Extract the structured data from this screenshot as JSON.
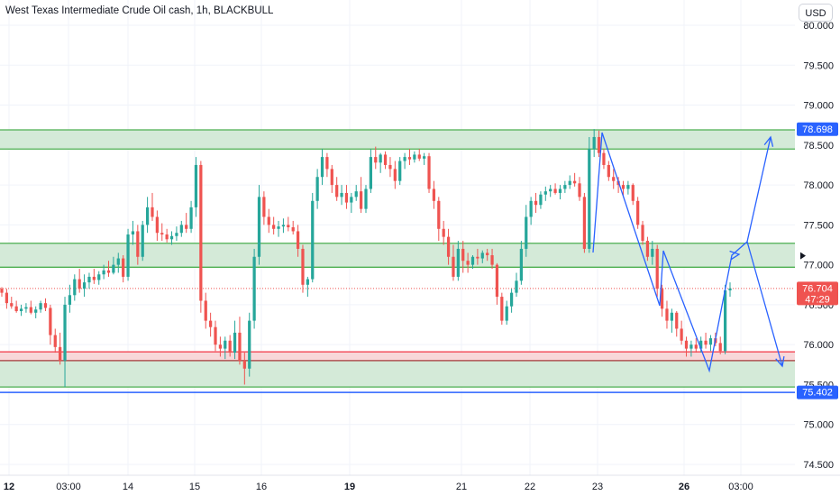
{
  "header": {
    "title": "West Texas Intermediate Crude Oil cash, 1h, BLACKBULL",
    "currency_button": "USD"
  },
  "colors": {
    "up": "#26a69a",
    "down": "#ef5350",
    "zone_fill": "#d4ead8",
    "zone_line": "#4caf50",
    "support_red": "#f23645",
    "support_fill": "#f8d7d9",
    "low_line": "#2962ff",
    "pattern": "#2962ff",
    "grid": "#f0f3fa",
    "axis_text": "#131722"
  },
  "chart_data": {
    "type": "candlestick",
    "title": "West Texas Intermediate Crude Oil cash, 1h, BLACKBULL",
    "ylim": [
      74.4,
      80.05
    ],
    "yticks": [
      "80.000",
      "79.500",
      "79.000",
      "78.500",
      "78.000",
      "77.500",
      "77.000",
      "76.500",
      "76.000",
      "75.500",
      "75.000",
      "74.500"
    ],
    "ytick_values": [
      80.0,
      79.5,
      79.0,
      78.5,
      78.0,
      77.5,
      77.0,
      76.5,
      76.0,
      75.5,
      75.0,
      74.5
    ],
    "xticks": [
      {
        "label": "12",
        "bold": true
      },
      {
        "label": "03:00",
        "bold": false
      },
      {
        "label": "14",
        "bold": false
      },
      {
        "label": "15",
        "bold": false
      },
      {
        "label": "16",
        "bold": false
      },
      {
        "label": "19",
        "bold": true
      },
      {
        "label": "21",
        "bold": false
      },
      {
        "label": "22",
        "bold": false
      },
      {
        "label": "23",
        "bold": false
      },
      {
        "label": "26",
        "bold": true
      },
      {
        "label": "03:00",
        "bold": false
      }
    ],
    "price_tags": [
      {
        "label": "78.698",
        "value": 78.698,
        "color": "#2962ff"
      },
      {
        "label": "76.704",
        "sublabel": "47:29",
        "value": 76.704,
        "color": "#ef5350"
      },
      {
        "label": "75.402",
        "value": 75.402,
        "color": "#2962ff"
      }
    ],
    "last_price": 76.704,
    "countdown": "47:29",
    "zones": [
      {
        "from": 78.45,
        "to": 78.69,
        "kind": "resistance"
      },
      {
        "from": 76.97,
        "to": 77.27,
        "kind": "middle"
      },
      {
        "from": 75.47,
        "to": 75.91,
        "kind": "support"
      }
    ],
    "red_support_band": [
      75.8,
      75.91
    ],
    "low_line": 75.402,
    "candles_ohlc": [
      [
        76.7,
        76.72,
        76.6,
        76.65
      ],
      [
        76.65,
        76.7,
        76.45,
        76.52
      ],
      [
        76.52,
        76.6,
        76.45,
        76.48
      ],
      [
        76.48,
        76.55,
        76.4,
        76.42
      ],
      [
        76.42,
        76.5,
        76.36,
        76.45
      ],
      [
        76.45,
        76.52,
        76.4,
        76.47
      ],
      [
        76.47,
        76.55,
        76.38,
        76.4
      ],
      [
        76.4,
        76.48,
        76.33,
        76.44
      ],
      [
        76.44,
        76.55,
        76.4,
        76.52
      ],
      [
        76.52,
        76.58,
        76.42,
        76.46
      ],
      [
        76.46,
        76.5,
        76.0,
        76.12
      ],
      [
        76.12,
        76.2,
        75.9,
        75.97
      ],
      [
        75.97,
        76.15,
        75.75,
        75.8
      ],
      [
        75.8,
        76.6,
        75.47,
        76.5
      ],
      [
        76.5,
        76.75,
        76.4,
        76.62
      ],
      [
        76.62,
        76.88,
        76.55,
        76.82
      ],
      [
        76.82,
        76.95,
        76.65,
        76.7
      ],
      [
        76.7,
        76.88,
        76.6,
        76.78
      ],
      [
        76.78,
        76.9,
        76.7,
        76.85
      ],
      [
        76.85,
        76.95,
        76.76,
        76.81
      ],
      [
        76.81,
        76.92,
        76.75,
        76.88
      ],
      [
        76.88,
        77.0,
        76.82,
        76.93
      ],
      [
        76.93,
        77.05,
        76.85,
        76.9
      ],
      [
        76.9,
        77.1,
        76.88,
        77.0
      ],
      [
        77.0,
        77.15,
        76.9,
        77.08
      ],
      [
        77.08,
        77.12,
        76.78,
        76.85
      ],
      [
        76.85,
        77.45,
        76.8,
        77.38
      ],
      [
        77.38,
        77.55,
        77.25,
        77.42
      ],
      [
        77.42,
        77.5,
        77.0,
        77.1
      ],
      [
        77.1,
        77.55,
        77.05,
        77.5
      ],
      [
        77.5,
        77.85,
        77.4,
        77.72
      ],
      [
        77.72,
        77.9,
        77.55,
        77.6
      ],
      [
        77.6,
        77.68,
        77.3,
        77.4
      ],
      [
        77.4,
        77.52,
        77.3,
        77.38
      ],
      [
        77.38,
        77.45,
        77.28,
        77.32
      ],
      [
        77.32,
        77.42,
        77.25,
        77.36
      ],
      [
        77.36,
        77.48,
        77.3,
        77.4
      ],
      [
        77.4,
        77.55,
        77.35,
        77.5
      ],
      [
        77.5,
        77.65,
        77.4,
        77.45
      ],
      [
        77.45,
        77.8,
        77.4,
        77.72
      ],
      [
        77.72,
        78.35,
        77.6,
        78.25
      ],
      [
        78.25,
        78.3,
        76.4,
        76.55
      ],
      [
        76.55,
        76.65,
        76.2,
        76.3
      ],
      [
        76.3,
        76.4,
        76.1,
        76.22
      ],
      [
        76.22,
        76.3,
        75.92,
        76.0
      ],
      [
        76.0,
        76.1,
        75.85,
        75.95
      ],
      [
        75.95,
        76.1,
        75.82,
        76.05
      ],
      [
        76.05,
        76.12,
        75.85,
        75.9
      ],
      [
        75.9,
        76.3,
        75.82,
        76.15
      ],
      [
        76.15,
        76.35,
        75.75,
        75.8
      ],
      [
        75.8,
        75.9,
        75.5,
        75.7
      ],
      [
        75.7,
        76.4,
        75.6,
        76.3
      ],
      [
        76.3,
        77.2,
        76.2,
        77.1
      ],
      [
        77.1,
        78.0,
        77.0,
        77.85
      ],
      [
        77.85,
        77.92,
        77.5,
        77.6
      ],
      [
        77.6,
        77.7,
        77.4,
        77.5
      ],
      [
        77.5,
        77.6,
        77.38,
        77.45
      ],
      [
        77.45,
        77.55,
        77.35,
        77.48
      ],
      [
        77.48,
        77.58,
        77.4,
        77.5
      ],
      [
        77.5,
        77.6,
        77.42,
        77.47
      ],
      [
        77.47,
        77.55,
        77.38,
        77.42
      ],
      [
        77.42,
        77.5,
        77.1,
        77.2
      ],
      [
        77.2,
        77.25,
        76.65,
        76.75
      ],
      [
        76.75,
        76.85,
        76.6,
        76.82
      ],
      [
        76.82,
        77.9,
        76.78,
        77.8
      ],
      [
        77.8,
        78.2,
        77.7,
        78.1
      ],
      [
        78.1,
        78.45,
        78.0,
        78.35
      ],
      [
        78.35,
        78.4,
        78.1,
        78.2
      ],
      [
        78.2,
        78.25,
        77.9,
        78.0
      ],
      [
        78.0,
        78.1,
        77.8,
        77.85
      ],
      [
        77.85,
        78.0,
        77.75,
        77.9
      ],
      [
        77.9,
        78.0,
        77.7,
        77.78
      ],
      [
        77.78,
        77.9,
        77.65,
        77.85
      ],
      [
        77.85,
        78.0,
        77.8,
        77.92
      ],
      [
        77.92,
        78.1,
        77.65,
        77.7
      ],
      [
        77.7,
        78.0,
        77.65,
        77.95
      ],
      [
        77.95,
        78.45,
        77.9,
        78.35
      ],
      [
        78.35,
        78.48,
        78.2,
        78.28
      ],
      [
        78.28,
        78.4,
        78.15,
        78.38
      ],
      [
        78.38,
        78.42,
        78.2,
        78.25
      ],
      [
        78.25,
        78.35,
        78.1,
        78.2
      ],
      [
        78.2,
        78.3,
        77.95,
        78.05
      ],
      [
        78.05,
        78.35,
        78.0,
        78.3
      ],
      [
        78.3,
        78.4,
        78.2,
        78.35
      ],
      [
        78.35,
        78.45,
        78.25,
        78.32
      ],
      [
        78.32,
        78.42,
        78.28,
        78.38
      ],
      [
        78.38,
        78.45,
        78.3,
        78.33
      ],
      [
        78.33,
        78.4,
        78.25,
        78.36
      ],
      [
        78.36,
        78.4,
        77.9,
        77.95
      ],
      [
        77.95,
        78.05,
        77.7,
        77.8
      ],
      [
        77.8,
        77.85,
        77.3,
        77.45
      ],
      [
        77.45,
        77.55,
        77.25,
        77.35
      ],
      [
        77.35,
        77.45,
        77.0,
        77.1
      ],
      [
        77.1,
        77.25,
        76.8,
        76.85
      ],
      [
        76.85,
        77.3,
        76.8,
        77.2
      ],
      [
        77.2,
        77.3,
        76.9,
        77.05
      ],
      [
        77.05,
        77.15,
        76.9,
        77.0
      ],
      [
        77.0,
        77.12,
        76.95,
        77.1
      ],
      [
        77.1,
        77.2,
        77.0,
        77.08
      ],
      [
        77.08,
        77.18,
        77.02,
        77.15
      ],
      [
        77.15,
        77.2,
        77.05,
        77.12
      ],
      [
        77.12,
        77.2,
        76.95,
        77.0
      ],
      [
        77.0,
        77.02,
        76.5,
        76.6
      ],
      [
        76.6,
        76.65,
        76.25,
        76.3
      ],
      [
        76.3,
        76.55,
        76.25,
        76.48
      ],
      [
        76.48,
        76.7,
        76.4,
        76.65
      ],
      [
        76.65,
        76.9,
        76.6,
        76.8
      ],
      [
        76.8,
        77.3,
        76.75,
        77.2
      ],
      [
        77.2,
        77.75,
        77.1,
        77.6
      ],
      [
        77.6,
        77.85,
        77.5,
        77.8
      ],
      [
        77.8,
        77.9,
        77.65,
        77.75
      ],
      [
        77.75,
        77.92,
        77.7,
        77.88
      ],
      [
        77.88,
        77.98,
        77.8,
        77.92
      ],
      [
        77.92,
        78.0,
        77.85,
        77.95
      ],
      [
        77.95,
        78.02,
        77.88,
        77.9
      ],
      [
        77.9,
        78.0,
        77.82,
        77.95
      ],
      [
        77.95,
        78.05,
        77.9,
        78.0
      ],
      [
        78.0,
        78.12,
        77.95,
        78.05
      ],
      [
        78.05,
        78.15,
        77.98,
        78.02
      ],
      [
        78.02,
        78.1,
        77.8,
        77.85
      ],
      [
        77.85,
        77.9,
        77.15,
        77.2
      ],
      [
        77.2,
        78.6,
        77.15,
        78.45
      ],
      [
        78.45,
        78.7,
        78.35,
        78.6
      ],
      [
        78.6,
        78.68,
        78.35,
        78.4
      ],
      [
        78.4,
        78.45,
        78.2,
        78.25
      ],
      [
        78.25,
        78.3,
        78.05,
        78.1
      ],
      [
        78.1,
        78.2,
        77.95,
        78.05
      ],
      [
        78.05,
        78.1,
        77.9,
        78.0
      ],
      [
        78.0,
        78.05,
        77.85,
        77.95
      ],
      [
        77.95,
        78.05,
        77.88,
        78.0
      ],
      [
        78.0,
        78.02,
        77.75,
        77.8
      ],
      [
        77.8,
        77.85,
        77.45,
        77.5
      ],
      [
        77.5,
        77.55,
        77.25,
        77.3
      ],
      [
        77.3,
        77.35,
        77.05,
        77.1
      ],
      [
        77.1,
        77.3,
        77.0,
        77.2
      ],
      [
        77.2,
        77.25,
        76.6,
        76.7
      ],
      [
        76.7,
        76.75,
        76.35,
        76.45
      ],
      [
        76.45,
        76.55,
        76.2,
        76.3
      ],
      [
        76.3,
        76.45,
        76.15,
        76.4
      ],
      [
        76.4,
        76.42,
        76.1,
        76.2
      ],
      [
        76.2,
        76.3,
        76.0,
        76.05
      ],
      [
        76.05,
        76.1,
        75.85,
        75.95
      ],
      [
        75.95,
        76.05,
        75.85,
        76.0
      ],
      [
        76.0,
        76.08,
        75.9,
        75.95
      ],
      [
        75.95,
        76.1,
        75.9,
        76.05
      ],
      [
        76.05,
        76.15,
        75.95,
        76.0
      ],
      [
        76.0,
        76.12,
        75.92,
        76.08
      ],
      [
        76.08,
        76.15,
        75.98,
        76.02
      ],
      [
        76.02,
        76.1,
        75.88,
        75.92
      ],
      [
        75.92,
        76.75,
        75.88,
        76.68
      ],
      [
        76.68,
        76.78,
        76.6,
        76.704
      ]
    ],
    "pattern_path": [
      [
        658,
        280
      ],
      [
        668,
        147
      ],
      [
        732,
        339
      ],
      [
        736,
        278
      ],
      [
        787,
        411
      ],
      [
        812,
        283
      ],
      [
        829,
        268
      ],
      [
        855,
        152
      ]
    ],
    "pattern_arrow2": [
      [
        829,
        268
      ],
      [
        868,
        406
      ]
    ]
  }
}
